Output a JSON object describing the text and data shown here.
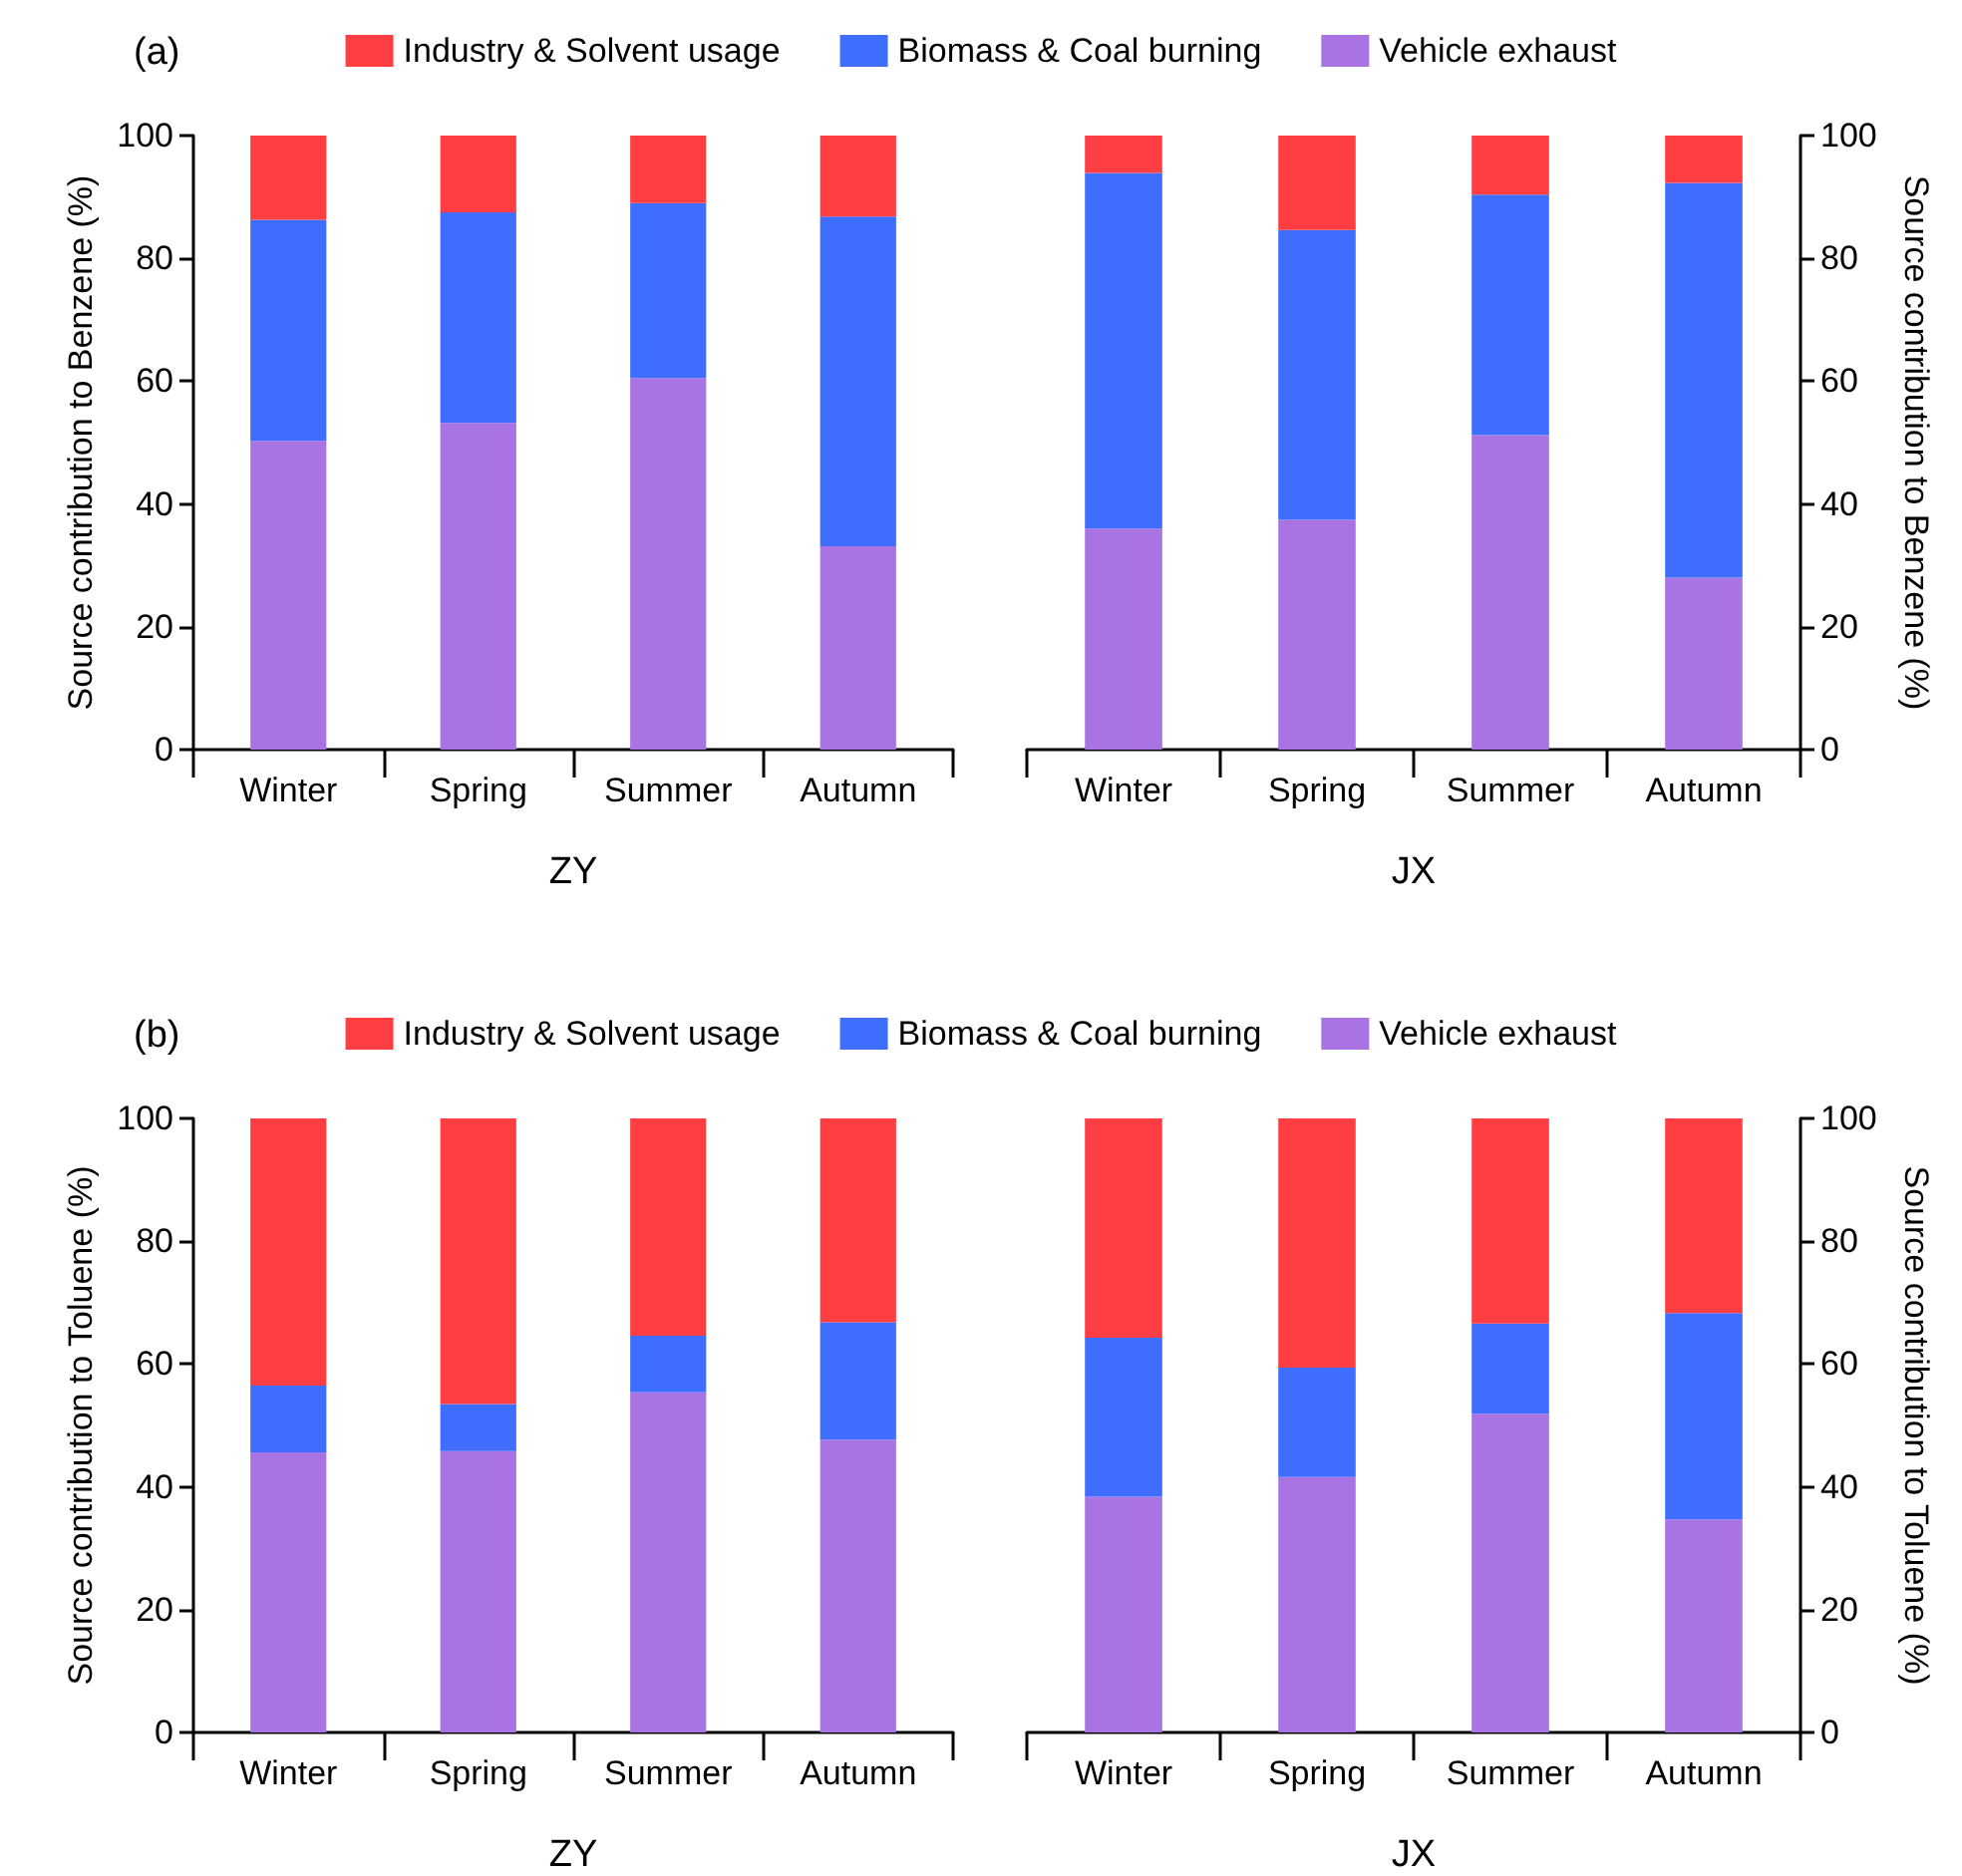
{
  "chart_data": [
    {
      "type": "bar",
      "title": "(a)",
      "stacked": true,
      "legend": "top",
      "grid": false,
      "xlabel": "ZY",
      "ylabel": "Source contribution to Benzene (%)",
      "categories": [
        "Winter",
        "Spring",
        "Summer",
        "Autumn"
      ],
      "ylim": [
        0,
        100
      ],
      "yticks": [
        0,
        20,
        40,
        60,
        80,
        100
      ],
      "series": [
        {
          "name": "Vehicle exhaust",
          "color": "#aa73e4",
          "values": [
            50.3,
            53.2,
            60.5,
            33.1
          ]
        },
        {
          "name": "Biomass & Coal burning",
          "color": "#3f6dfe",
          "values": [
            36.0,
            34.3,
            28.5,
            53.7
          ]
        },
        {
          "name": "Industry & Solvent usage",
          "color": "#fe3e42",
          "values": [
            13.7,
            12.5,
            11.0,
            13.2
          ]
        }
      ]
    },
    {
      "type": "bar",
      "stacked": true,
      "grid": false,
      "xlabel": "JX",
      "y2label": "Source contribution to Benzene (%)",
      "categories": [
        "Winter",
        "Spring",
        "Summer",
        "Autumn"
      ],
      "y2lim": [
        0,
        100
      ],
      "y2ticks": [
        0,
        20,
        40,
        60,
        80,
        100
      ],
      "series": [
        {
          "color": "#aa73e4",
          "axis": "y2",
          "values": [
            36.0,
            37.4,
            51.2,
            28.0
          ]
        },
        {
          "color": "#3f6dfe",
          "axis": "y2",
          "values": [
            57.9,
            47.2,
            39.2,
            64.3
          ]
        },
        {
          "color": "#fe3e42",
          "axis": "y2",
          "values": [
            6.1,
            15.4,
            9.6,
            7.7
          ]
        }
      ]
    },
    {
      "type": "bar",
      "title": "(b)",
      "stacked": true,
      "legend": "top",
      "grid": false,
      "xlabel": "ZY",
      "ylabel": "Source contribution to Toluene (%)",
      "categories": [
        "Winter",
        "Spring",
        "Summer",
        "Autumn"
      ],
      "ylim": [
        0,
        100
      ],
      "yticks": [
        0,
        20,
        40,
        60,
        80,
        100
      ],
      "series": [
        {
          "name": "Vehicle exhaust",
          "color": "#aa73e4",
          "values": [
            45.6,
            45.8,
            55.4,
            47.7
          ]
        },
        {
          "name": "Biomass & Coal burning",
          "color": "#3f6dfe",
          "values": [
            10.9,
            7.7,
            9.2,
            19.1
          ]
        },
        {
          "name": "Industry & Solvent usage",
          "color": "#fe3e42",
          "values": [
            43.5,
            46.5,
            35.4,
            33.2
          ]
        }
      ]
    },
    {
      "type": "bar",
      "stacked": true,
      "grid": false,
      "xlabel": "JX",
      "y2label": "Source contribution to Toluene (%)",
      "categories": [
        "Winter",
        "Spring",
        "Summer",
        "Autumn"
      ],
      "y2lim": [
        0,
        100
      ],
      "y2ticks": [
        0,
        20,
        40,
        60,
        80,
        100
      ],
      "series": [
        {
          "color": "#aa73e4",
          "axis": "y2",
          "values": [
            38.4,
            41.6,
            51.9,
            34.7
          ]
        },
        {
          "color": "#3f6dfe",
          "axis": "y2",
          "values": [
            25.9,
            17.8,
            14.7,
            33.6
          ]
        },
        {
          "color": "#fe3e42",
          "axis": "y2",
          "values": [
            35.7,
            40.6,
            33.4,
            31.7
          ]
        }
      ]
    }
  ]
}
